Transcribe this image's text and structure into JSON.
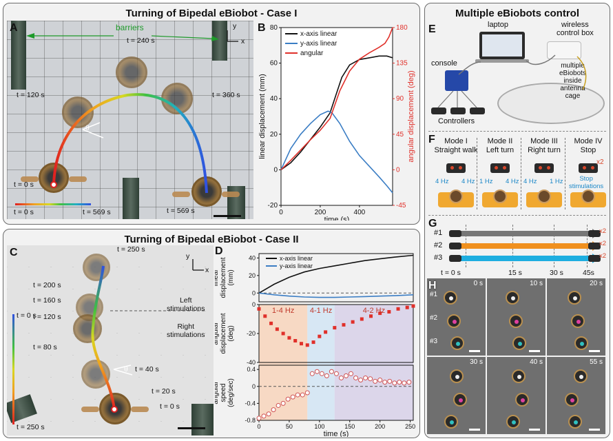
{
  "panel_titles": {
    "case1": "Turning of Bipedal eBiobot - Case I",
    "case2": "Turning of Bipedal eBiobot - Case II",
    "multi": "Multiple eBiobots control"
  },
  "letters": {
    "A": "A",
    "B": "B",
    "C": "C",
    "D": "D",
    "E": "E",
    "F": "F",
    "G": "G",
    "H": "H"
  },
  "panel_a": {
    "barriers": "barriers",
    "times": [
      "t = 240 s",
      "t = 120 s",
      "t = 360 s",
      "t = 0 s",
      "t = 569 s"
    ],
    "colorbar_start": "t = 0 s",
    "colorbar_end": "t = 569 s",
    "angle": "θ",
    "axis_y": "y",
    "axis_x": "x"
  },
  "panel_c": {
    "times_left": [
      "t = 200 s",
      "t = 160 s",
      "t = 120 s",
      "t = 80 s"
    ],
    "time_top": "t = 250 s",
    "time_mid": "t = 40 s",
    "time_20": "t = 20 s",
    "time_0": "t = 0 s",
    "left_stim": "Left\nstimulations",
    "right_stim": "Right\nstimulations",
    "colorbar_start": "t = 0 s",
    "colorbar_end": "t = 250 s",
    "angle": "θ",
    "axis_y": "y",
    "axis_x": "x"
  },
  "panel_e": {
    "laptop": "laptop",
    "wireless": "wireless\ncontrol box",
    "console": "console",
    "controllers": "Controllers",
    "multiple": "multiple\neBiobots\ninside\nantenna\ncage"
  },
  "panel_f": {
    "modes": [
      {
        "name": "Mode I",
        "desc": "Straight walk",
        "left": "4 Hz",
        "right": "4 Hz"
      },
      {
        "name": "Mode II",
        "desc": "Left turn",
        "left": "1 Hz",
        "right": "4 Hz"
      },
      {
        "name": "Mode III",
        "desc": "Right turn",
        "left": "4 Hz",
        "right": "1 Hz"
      },
      {
        "name": "Mode IV",
        "desc": "Stop",
        "left": "",
        "right": ""
      }
    ],
    "x2": "x2",
    "stop_note": "Stop\nstimulations"
  },
  "panel_g": {
    "rows": [
      "#1",
      "#2",
      "#3"
    ],
    "times": [
      "t = 0 s",
      "15 s",
      "30 s",
      "45s"
    ],
    "x2": "x2",
    "colors": [
      "#777777",
      "#f0901e",
      "#1eaee0"
    ]
  },
  "panel_h": {
    "times": [
      "0 s",
      "10 s",
      "20 s",
      "30 s",
      "40 s",
      "55 s"
    ],
    "labels": [
      "#1",
      "#2",
      "#3"
    ]
  },
  "chart_data": [
    {
      "id": "B",
      "type": "line",
      "xlabel": "time (s)",
      "ylabel": "linear displacement (mm)",
      "y2label": "angular displacement (deg)",
      "xlim": [
        0,
        569
      ],
      "ylim": [
        -20,
        80
      ],
      "y2lim": [
        -45,
        180
      ],
      "xticks": [
        0,
        200,
        400
      ],
      "yticks": [
        -20,
        0,
        20,
        40,
        60,
        80
      ],
      "y2ticks": [
        -45,
        0,
        45,
        90,
        135,
        180
      ],
      "legend": [
        "x-axis linear",
        "y-axis linear",
        "angular"
      ],
      "colors": [
        "#111111",
        "#3a7dc4",
        "#e0302a"
      ],
      "series": [
        {
          "name": "x-axis linear",
          "axis": "left",
          "x": [
            0,
            50,
            100,
            150,
            200,
            250,
            280,
            310,
            350,
            400,
            450,
            500,
            540,
            569
          ],
          "y": [
            0,
            4,
            10,
            17,
            24,
            32,
            42,
            52,
            59,
            62,
            63,
            64,
            64,
            63
          ]
        },
        {
          "name": "y-axis linear",
          "axis": "left",
          "x": [
            0,
            50,
            100,
            150,
            200,
            240,
            260,
            300,
            350,
            400,
            450,
            500,
            540,
            569
          ],
          "y": [
            0,
            12,
            20,
            26,
            31,
            33,
            32,
            26,
            16,
            8,
            2,
            -4,
            -9,
            -13
          ]
        },
        {
          "name": "angular",
          "axis": "right",
          "x": [
            0,
            50,
            100,
            150,
            200,
            250,
            300,
            350,
            400,
            450,
            500,
            530,
            550,
            569
          ],
          "y": [
            0,
            12,
            25,
            38,
            50,
            65,
            100,
            125,
            140,
            148,
            155,
            160,
            168,
            180
          ]
        }
      ]
    },
    {
      "id": "D",
      "type": "line",
      "xlabel": "time (s)",
      "xlim": [
        0,
        255
      ],
      "xticks": [
        0,
        50,
        100,
        150,
        200,
        250
      ],
      "regions": [
        {
          "label": "1-4 Hz",
          "from": 0,
          "to": 80,
          "color": "#f7d9c4"
        },
        {
          "label": "4-1 Hz",
          "from": 80,
          "to": 125,
          "color": "#d7e7f4"
        },
        {
          "label": "4-2 Hz",
          "from": 125,
          "to": 255,
          "color": "#dcd6ea"
        }
      ],
      "subplots": [
        {
          "ylabel": "linear\ndisplacement\n(mm)",
          "ylim": [
            -10,
            45
          ],
          "yticks": [
            0,
            20,
            40
          ],
          "legend": [
            "x-axis linear",
            "y-axis linear"
          ],
          "series": [
            {
              "name": "x-axis linear",
              "color": "#111111",
              "x": [
                0,
                25,
                50,
                75,
                100,
                125,
                150,
                175,
                200,
                225,
                255
              ],
              "y": [
                0,
                10,
                18,
                24,
                28,
                31,
                34,
                37,
                39,
                41,
                43
              ]
            },
            {
              "name": "y-axis linear",
              "color": "#3a7dc4",
              "x": [
                0,
                25,
                50,
                75,
                100,
                125,
                150,
                175,
                200,
                225,
                255
              ],
              "y": [
                0,
                -2,
                -3.5,
                -4.5,
                -5,
                -5,
                -4.5,
                -4,
                -3.5,
                -3,
                -2
              ]
            }
          ]
        },
        {
          "ylabel": "angular\ndisplacement\n(deg)",
          "ylim": [
            -40,
            0
          ],
          "yticks": [
            -40,
            -20,
            0
          ],
          "series": [
            {
              "name": "angular",
              "color": "#e0302a",
              "x": [
                0,
                10,
                20,
                30,
                40,
                50,
                60,
                70,
                80,
                90,
                100,
                110,
                125,
                140,
                155,
                170,
                185,
                200,
                215,
                230,
                245,
                255
              ],
              "y": [
                -3,
                -8,
                -13,
                -17,
                -20,
                -23,
                -25,
                -27,
                -28,
                -26,
                -22,
                -19,
                -16,
                -14,
                -12,
                -10,
                -8,
                -6,
                -5,
                -3,
                -2,
                -1
              ]
            }
          ]
        },
        {
          "ylabel": "angular\nspeed\n(deg/sec)",
          "ylim": [
            -0.8,
            0.5
          ],
          "yticks": [
            -0.8,
            -0.4,
            0,
            0.4
          ],
          "series": [
            {
              "name": "angular speed",
              "color": "#e0302a",
              "x": [
                0,
                8,
                16,
                24,
                32,
                40,
                48,
                56,
                64,
                72,
                80,
                88,
                96,
                104,
                112,
                120,
                128,
                136,
                144,
                152,
                160,
                168,
                176,
                184,
                192,
                200,
                208,
                216,
                224,
                232,
                240,
                248
              ],
              "y": [
                -0.75,
                -0.7,
                -0.65,
                -0.55,
                -0.45,
                -0.4,
                -0.3,
                -0.25,
                -0.2,
                -0.2,
                -0.15,
                0.3,
                0.35,
                0.3,
                0.25,
                0.35,
                0.3,
                0.2,
                0.25,
                0.3,
                0.2,
                0.15,
                0.2,
                0.18,
                0.12,
                0.15,
                0.1,
                0.12,
                0.08,
                0.1,
                0.08,
                0.1
              ]
            }
          ]
        }
      ]
    }
  ]
}
